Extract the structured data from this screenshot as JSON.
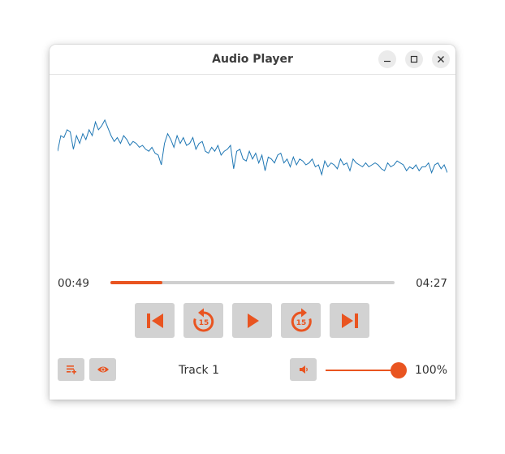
{
  "window": {
    "title": "Audio Player"
  },
  "titlebar_buttons": [
    "minimize-icon",
    "maximize-icon",
    "close-icon"
  ],
  "waveform": {
    "color": "#1f77b4",
    "samples": [
      0.62,
      0.7,
      0.69,
      0.73,
      0.72,
      0.63,
      0.7,
      0.66,
      0.71,
      0.68,
      0.73,
      0.7,
      0.77,
      0.73,
      0.75,
      0.78,
      0.74,
      0.7,
      0.67,
      0.69,
      0.66,
      0.7,
      0.68,
      0.65,
      0.67,
      0.66,
      0.64,
      0.65,
      0.63,
      0.62,
      0.64,
      0.61,
      0.6,
      0.55,
      0.66,
      0.71,
      0.68,
      0.64,
      0.7,
      0.66,
      0.69,
      0.65,
      0.66,
      0.69,
      0.63,
      0.66,
      0.67,
      0.62,
      0.61,
      0.64,
      0.62,
      0.65,
      0.6,
      0.62,
      0.63,
      0.65,
      0.53,
      0.62,
      0.63,
      0.58,
      0.57,
      0.62,
      0.58,
      0.61,
      0.56,
      0.6,
      0.52,
      0.59,
      0.58,
      0.56,
      0.6,
      0.61,
      0.56,
      0.58,
      0.54,
      0.59,
      0.55,
      0.58,
      0.57,
      0.55,
      0.56,
      0.58,
      0.54,
      0.55,
      0.5,
      0.57,
      0.54,
      0.56,
      0.55,
      0.53,
      0.58,
      0.55,
      0.56,
      0.52,
      0.58,
      0.56,
      0.55,
      0.54,
      0.56,
      0.54,
      0.55,
      0.56,
      0.55,
      0.53,
      0.52,
      0.56,
      0.54,
      0.55,
      0.57,
      0.56,
      0.55,
      0.52,
      0.54,
      0.53,
      0.55,
      0.52,
      0.54,
      0.54,
      0.56,
      0.51,
      0.55,
      0.56,
      0.53,
      0.55,
      0.51
    ]
  },
  "playback": {
    "current_time": "00:49",
    "total_time": "04:27",
    "progress": 0.184
  },
  "controls": [
    "skip-previous-icon",
    "rewind-15-icon",
    "play-icon",
    "forward-15-icon",
    "skip-next-icon"
  ],
  "controls_badge": "15",
  "track": {
    "name": "Track 1"
  },
  "volume": {
    "level": 1.0,
    "label": "100%"
  },
  "accent_color": "#e95420"
}
